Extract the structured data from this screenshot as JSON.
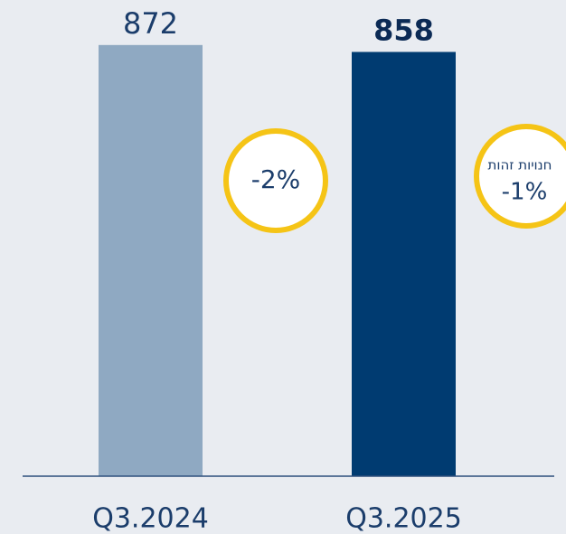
{
  "chart_data": {
    "type": "bar",
    "categories": [
      "Q3.2024",
      "Q3.2025"
    ],
    "values": [
      872,
      858
    ],
    "colors": [
      "#8fa9c2",
      "#003b71"
    ],
    "ylim": [
      0,
      900
    ],
    "annotations": [
      {
        "text": "-2%"
      },
      {
        "label": "חנויות זהות",
        "text": "-1%"
      }
    ]
  }
}
